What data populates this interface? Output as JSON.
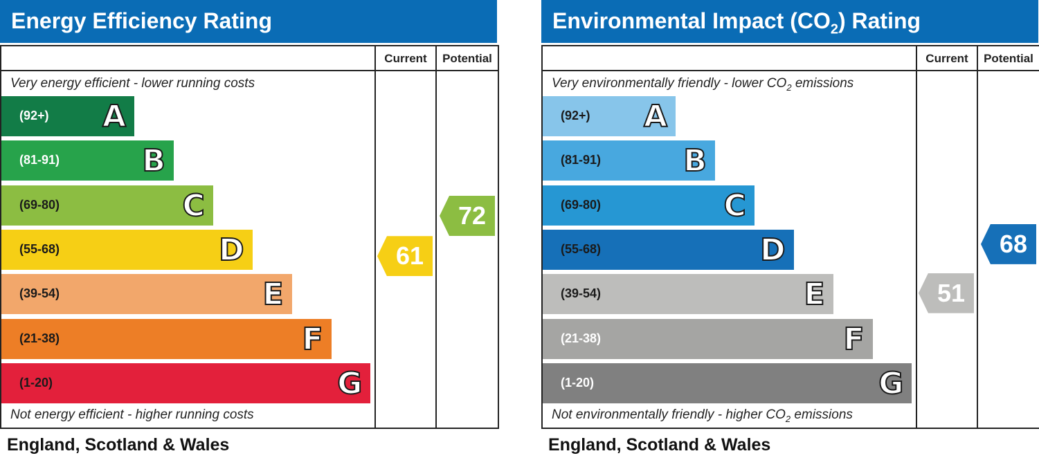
{
  "charts": [
    {
      "title": "Energy Efficiency Rating",
      "current_label": "Current",
      "potential_label": "Potential",
      "top_note": "Very energy efficient - lower running costs",
      "bottom_note": "Not energy efficient - higher running costs",
      "footer": "England, Scotland & Wales",
      "bands": [
        {
          "letter": "A",
          "range": "(92+)",
          "color": "#127c47",
          "text_color": "#ffffff"
        },
        {
          "letter": "B",
          "range": "(81-91)",
          "color": "#27a34b",
          "text_color": "#ffffff"
        },
        {
          "letter": "C",
          "range": "(69-80)",
          "color": "#8cbd42",
          "text_color": "#1a1a1a"
        },
        {
          "letter": "D",
          "range": "(55-68)",
          "color": "#f6cf15",
          "text_color": "#1a1a1a"
        },
        {
          "letter": "E",
          "range": "(39-54)",
          "color": "#f2a76b",
          "text_color": "#1a1a1a"
        },
        {
          "letter": "F",
          "range": "(21-38)",
          "color": "#ed7e26",
          "text_color": "#1a1a1a"
        },
        {
          "letter": "G",
          "range": "(1-20)",
          "color": "#e3203b",
          "text_color": "#1a1a1a"
        }
      ],
      "current": {
        "value": "61",
        "color": "#f6cf15"
      },
      "potential": {
        "value": "72",
        "color": "#8cbd42"
      }
    },
    {
      "title": "Environmental Impact (CO",
      "title_sub": "2",
      "title_suffix": ") Rating",
      "current_label": "Current",
      "potential_label": "Potential",
      "top_note": "Very environmentally friendly - lower CO",
      "top_note_sub": "2",
      "top_note_suffix": " emissions",
      "bottom_note": "Not environmentally friendly - higher CO",
      "bottom_note_sub": "2",
      "bottom_note_suffix": " emissions",
      "footer": "England, Scotland & Wales",
      "bands": [
        {
          "letter": "A",
          "range": "(92+)",
          "color": "#87c5ea",
          "text_color": "#1a1a1a"
        },
        {
          "letter": "B",
          "range": "(81-91)",
          "color": "#48a8df",
          "text_color": "#1a1a1a"
        },
        {
          "letter": "C",
          "range": "(69-80)",
          "color": "#2697d3",
          "text_color": "#1a1a1a"
        },
        {
          "letter": "D",
          "range": "(55-68)",
          "color": "#1670b8",
          "text_color": "#1a1a1a"
        },
        {
          "letter": "E",
          "range": "(39-54)",
          "color": "#bdbdbb",
          "text_color": "#1a1a1a"
        },
        {
          "letter": "F",
          "range": "(21-38)",
          "color": "#a5a5a3",
          "text_color": "#ffffff"
        },
        {
          "letter": "G",
          "range": "(1-20)",
          "color": "#808080",
          "text_color": "#ffffff"
        }
      ],
      "current": {
        "value": "51",
        "color": "#bdbdbb"
      },
      "potential": {
        "value": "68",
        "color": "#1670b8"
      }
    }
  ],
  "chart_data": [
    {
      "type": "bar",
      "title": "Energy Efficiency Rating",
      "categories": [
        "A",
        "B",
        "C",
        "D",
        "E",
        "F",
        "G"
      ],
      "ranges": [
        "(92+)",
        "(81-91)",
        "(69-80)",
        "(55-68)",
        "(39-54)",
        "(21-38)",
        "(1-20)"
      ],
      "current": 61,
      "potential": 72
    },
    {
      "type": "bar",
      "title": "Environmental Impact (CO2) Rating",
      "categories": [
        "A",
        "B",
        "C",
        "D",
        "E",
        "F",
        "G"
      ],
      "ranges": [
        "(92+)",
        "(81-91)",
        "(69-80)",
        "(55-68)",
        "(39-54)",
        "(21-38)",
        "(1-20)"
      ],
      "current": 51,
      "potential": 68
    }
  ]
}
